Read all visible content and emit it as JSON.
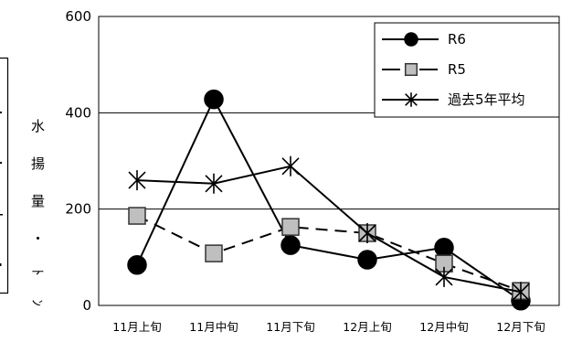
{
  "chart_data": {
    "type": "line",
    "categories": [
      "11月上旬",
      "11月中旬",
      "11月下旬",
      "12月上旬",
      "12月中旬",
      "12月下旬"
    ],
    "series": [
      {
        "name": "R6",
        "values": [
          84,
          428,
          125,
          95,
          120,
          10
        ],
        "color": "#000000",
        "line": "solid",
        "marker": "circle",
        "marker_fill": "#000000",
        "marker_stroke": "#000000"
      },
      {
        "name": "R5",
        "values": [
          186,
          108,
          163,
          150,
          87,
          30
        ],
        "color": "#000000",
        "line": "dashed",
        "marker": "square",
        "marker_fill": "#bfbfbf",
        "marker_stroke": "#333333"
      },
      {
        "name": "過去5年平均",
        "values": [
          260,
          253,
          289,
          150,
          59,
          28
        ],
        "color": "#000000",
        "line": "solid",
        "marker": "asterisk",
        "marker_fill": "none",
        "marker_stroke": "#000000"
      }
    ],
    "ylabel": "水揚量・ﾄﾝ",
    "ylim": [
      0,
      600
    ],
    "yticks": [
      0,
      200,
      400,
      600
    ],
    "grid": true,
    "legend_position": "top-right"
  }
}
